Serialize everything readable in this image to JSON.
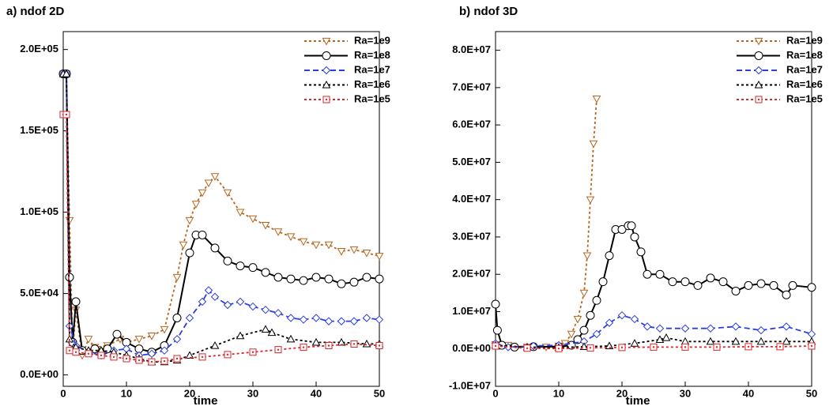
{
  "chart_data": [
    {
      "type": "line",
      "title": "a) ndof 2D",
      "x_label": "time",
      "xlim": [
        0,
        50
      ],
      "xticks": [
        0,
        10,
        20,
        30,
        40,
        50
      ],
      "ylim": [
        -7000,
        211000
      ],
      "yticks": [
        {
          "value": 0,
          "label": "0.0E+00"
        },
        {
          "value": 50000,
          "label": "5.0E+04"
        },
        {
          "value": 100000,
          "label": "1.0E+05"
        },
        {
          "value": 150000,
          "label": "1.5E+05"
        },
        {
          "value": 200000,
          "label": "2.0E+05"
        }
      ],
      "series": [
        {
          "name": "Ra=1e9",
          "color": "#b8651b",
          "dash": "3,3",
          "marker": "triangle-down",
          "x": [
            0,
            0.5,
            1,
            1.5,
            2,
            3,
            4,
            5,
            7,
            9,
            10,
            12,
            14,
            16,
            18,
            19,
            20,
            21,
            22,
            23,
            24,
            26,
            28,
            30,
            32,
            34,
            36,
            38,
            40,
            42,
            44,
            46,
            48,
            50
          ],
          "values": [
            185000,
            185000,
            95000,
            15000,
            40000,
            12000,
            22000,
            17000,
            18000,
            22000,
            20000,
            22000,
            24000,
            28000,
            60000,
            80000,
            95000,
            105000,
            112000,
            118000,
            122000,
            112000,
            100000,
            96000,
            92000,
            88000,
            85000,
            82000,
            80000,
            80000,
            76000,
            77000,
            75000,
            73000
          ]
        },
        {
          "name": "Ra=1e8",
          "color": "#000000",
          "dash": "",
          "marker": "circle",
          "x": [
            0,
            0.5,
            1,
            1.5,
            2,
            3,
            5,
            7,
            8.5,
            10,
            12,
            14,
            16,
            18,
            20,
            21,
            22,
            24,
            26,
            28,
            30,
            32,
            34,
            36,
            38,
            40,
            42,
            44,
            46,
            48,
            50
          ],
          "values": [
            185000,
            185000,
            60000,
            20000,
            45000,
            15000,
            16000,
            16000,
            25000,
            20000,
            16000,
            14000,
            18000,
            35000,
            75000,
            86000,
            86000,
            78000,
            70000,
            67000,
            66000,
            63000,
            60000,
            59000,
            58000,
            60000,
            59000,
            56000,
            57000,
            60000,
            59000
          ]
        },
        {
          "name": "Ra=1e7",
          "color": "#2b3fe0",
          "dash": "7,4",
          "marker": "diamond",
          "x": [
            0,
            0.5,
            1,
            2,
            4,
            6,
            8,
            10,
            12,
            14,
            16,
            18,
            20,
            22,
            23,
            24,
            26,
            28,
            30,
            32,
            34,
            36,
            38,
            40,
            42,
            44,
            46,
            48,
            50
          ],
          "values": [
            185000,
            185000,
            30000,
            18000,
            14000,
            12000,
            15000,
            16000,
            12000,
            13000,
            15000,
            22000,
            35000,
            45000,
            52000,
            48000,
            43000,
            45000,
            42000,
            40000,
            38000,
            35000,
            34000,
            35000,
            33000,
            33000,
            33000,
            35000,
            34000
          ]
        },
        {
          "name": "Ra=1e6",
          "color": "#000000",
          "dash": "3,3",
          "marker": "triangle-up",
          "x": [
            0,
            0.5,
            1,
            2,
            4,
            6,
            8,
            10,
            12,
            14,
            16,
            18,
            20,
            24,
            28,
            32,
            33,
            36,
            40,
            44,
            48,
            50
          ],
          "values": [
            185000,
            185000,
            22000,
            17000,
            15000,
            15000,
            14000,
            12000,
            10000,
            8000,
            8000,
            9000,
            12000,
            18000,
            24000,
            28000,
            26000,
            22000,
            20000,
            20000,
            19000,
            19000
          ]
        },
        {
          "name": "Ra=1e5",
          "color": "#d9262b",
          "dash": "3,3",
          "marker": "square",
          "x": [
            0,
            0.5,
            1,
            2,
            4,
            6,
            8,
            10,
            12,
            14,
            16,
            18,
            22,
            26,
            30,
            34,
            38,
            42,
            46,
            50
          ],
          "values": [
            160000,
            160000,
            15000,
            14000,
            13000,
            12000,
            11000,
            10000,
            9000,
            8000,
            8500,
            10000,
            11000,
            12500,
            14000,
            15500,
            17000,
            18000,
            19000,
            18000
          ]
        }
      ]
    },
    {
      "type": "line",
      "title": "b) ndof 3D",
      "x_label": "time",
      "xlim": [
        0,
        50
      ],
      "xticks": [
        0,
        10,
        20,
        30,
        40,
        50
      ],
      "ylim": [
        -10000000,
        85000000
      ],
      "yticks": [
        {
          "value": -10000000,
          "label": "-1.0E+07"
        },
        {
          "value": 0,
          "label": "0.0E+00"
        },
        {
          "value": 10000000,
          "label": "1.0E+07"
        },
        {
          "value": 20000000,
          "label": "2.0E+07"
        },
        {
          "value": 30000000,
          "label": "3.0E+07"
        },
        {
          "value": 40000000,
          "label": "4.0E+07"
        },
        {
          "value": 50000000,
          "label": "5.0E+07"
        },
        {
          "value": 60000000,
          "label": "6.0E+07"
        },
        {
          "value": 70000000,
          "label": "7.0E+07"
        },
        {
          "value": 80000000,
          "label": "8.0E+07"
        }
      ],
      "series": [
        {
          "name": "Ra=1e9",
          "color": "#b8651b",
          "dash": "3,3",
          "marker": "triangle-down",
          "x": [
            0,
            2,
            5,
            8,
            10,
            11,
            12,
            13,
            14,
            14.5,
            15,
            15.5,
            16
          ],
          "values": [
            1200000,
            1000000,
            500000,
            500000,
            800000,
            1500000,
            4000000,
            8000000,
            15000000,
            25000000,
            40000000,
            55000000,
            67000000
          ]
        },
        {
          "name": "Ra=1e8",
          "color": "#000000",
          "dash": "",
          "marker": "circle",
          "x": [
            0,
            0.3,
            1,
            3,
            6,
            10,
            12,
            13,
            14,
            15,
            16,
            17,
            18,
            19,
            20,
            21,
            21.5,
            22,
            23,
            24,
            26,
            28,
            30,
            32,
            34,
            36,
            38,
            40,
            42,
            44,
            46,
            47,
            50
          ],
          "values": [
            12000000,
            5000000,
            1000000,
            500000,
            600000,
            600000,
            1000000,
            2500000,
            5000000,
            9000000,
            13000000,
            18000000,
            25000000,
            32000000,
            32000000,
            33000000,
            33000000,
            30000000,
            26000000,
            20000000,
            20000000,
            18000000,
            18000000,
            17000000,
            19000000,
            18000000,
            15500000,
            17000000,
            17500000,
            17000000,
            14500000,
            17000000,
            16500000
          ]
        },
        {
          "name": "Ra=1e7",
          "color": "#2b3fe0",
          "dash": "7,4",
          "marker": "diamond",
          "x": [
            0,
            2,
            6,
            10,
            14,
            16,
            18,
            20,
            22,
            24,
            26,
            30,
            34,
            38,
            42,
            46,
            50
          ],
          "values": [
            1500000,
            500000,
            800000,
            1000000,
            2000000,
            4000000,
            7000000,
            9000000,
            8000000,
            6000000,
            5500000,
            5500000,
            5500000,
            6000000,
            5000000,
            6000000,
            4000000
          ]
        },
        {
          "name": "Ra=1e6",
          "color": "#000000",
          "dash": "3,3",
          "marker": "triangle-up",
          "x": [
            0,
            5,
            10,
            14,
            18,
            22,
            26,
            27,
            30,
            34,
            38,
            42,
            46,
            50
          ],
          "values": [
            1000000,
            500000,
            400000,
            600000,
            800000,
            1500000,
            2500000,
            3000000,
            2000000,
            2000000,
            2000000,
            2000000,
            2000000,
            2000000
          ]
        },
        {
          "name": "Ra=1e5",
          "color": "#d9262b",
          "dash": "3,3",
          "marker": "square",
          "x": [
            0,
            5,
            10,
            15,
            20,
            25,
            30,
            35,
            40,
            45,
            50
          ],
          "values": [
            800000,
            200000,
            100000,
            300000,
            400000,
            500000,
            500000,
            500000,
            600000,
            600000,
            800000
          ]
        }
      ]
    }
  ]
}
